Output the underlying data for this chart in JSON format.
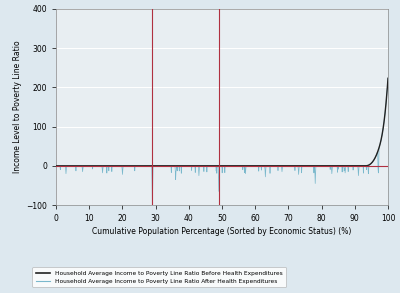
{
  "xlim": [
    0,
    100
  ],
  "ylim": [
    -100,
    400
  ],
  "yticks": [
    -100,
    0,
    100,
    200,
    300,
    400
  ],
  "xticks": [
    0,
    10,
    20,
    30,
    40,
    50,
    60,
    70,
    80,
    90,
    100
  ],
  "xlabel": "Cumulative Population Percentage (Sorted by Economic Status) (%)",
  "ylabel": "Income Level to Poverty Line Ratio",
  "vline1_x": 29,
  "vline2_x": 49,
  "vline_color": "#b03040",
  "hline_y": 0,
  "hline_color": "#b03040",
  "before_line_color": "#222222",
  "after_line_color": "#7ab8cc",
  "background_color": "#dde8ef",
  "plot_bg_color": "#e8eef2",
  "legend_before": "Household Average Income to Poverty Line Ratio Before Health Expenditures",
  "legend_after": "Household Average Income to Poverty Line Ratio After Health Expenditures",
  "grid_color": "#ffffff",
  "n_points": 1000
}
